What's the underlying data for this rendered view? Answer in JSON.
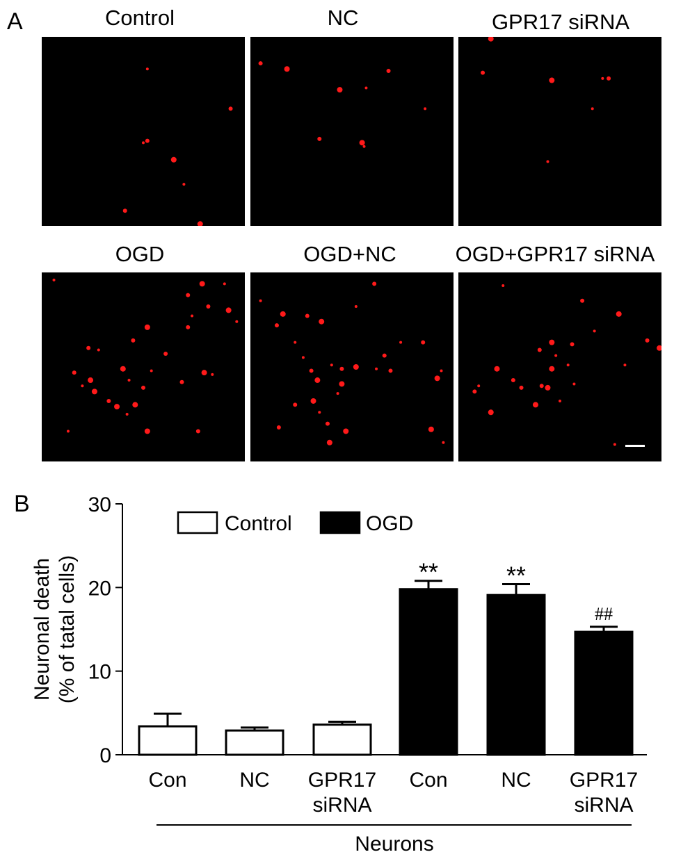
{
  "panel_a": {
    "letter": "A",
    "images": [
      {
        "title": "Control",
        "dot_color": "#ff1a1a",
        "dots": [
          [
            0.5,
            0.56
          ],
          [
            0.93,
            0.38
          ],
          [
            0.65,
            0.65
          ],
          [
            0.7,
            0.78
          ],
          [
            0.52,
            0.55
          ],
          [
            0.78,
            0.99
          ],
          [
            0.52,
            0.17
          ],
          [
            0.41,
            0.92
          ]
        ]
      },
      {
        "title": "NC",
        "dot_color": "#ff1a1a",
        "dots": [
          [
            0.57,
            0.27
          ],
          [
            0.68,
            0.18
          ],
          [
            0.44,
            0.28
          ],
          [
            0.56,
            0.58
          ],
          [
            0.34,
            0.54
          ],
          [
            0.18,
            0.17
          ],
          [
            0.86,
            0.38
          ],
          [
            0.05,
            0.14
          ],
          [
            0.55,
            0.56
          ]
        ]
      },
      {
        "title": "GPR17 siRNA",
        "dot_color": "#ff1a1a",
        "dots": [
          [
            0.44,
            0.66
          ],
          [
            0.74,
            0.22
          ],
          [
            0.46,
            0.23
          ],
          [
            0.66,
            0.38
          ],
          [
            0.12,
            0.19
          ],
          [
            0.16,
            0.01
          ],
          [
            0.71,
            0.22
          ]
        ]
      },
      {
        "title": "OGD",
        "dot_color": "#ff1a1a",
        "dots": [
          [
            0.06,
            0.04
          ],
          [
            0.23,
            0.4
          ],
          [
            0.52,
            0.29
          ],
          [
            0.74,
            0.23
          ],
          [
            0.82,
            0.18
          ],
          [
            0.92,
            0.2
          ],
          [
            0.96,
            0.26
          ],
          [
            0.72,
            0.12
          ],
          [
            0.79,
            0.06
          ],
          [
            0.54,
            0.52
          ],
          [
            0.61,
            0.43
          ],
          [
            0.4,
            0.51
          ],
          [
            0.28,
            0.41
          ],
          [
            0.45,
            0.36
          ],
          [
            0.24,
            0.57
          ],
          [
            0.2,
            0.6
          ],
          [
            0.33,
            0.68
          ],
          [
            0.37,
            0.71
          ],
          [
            0.43,
            0.57
          ],
          [
            0.5,
            0.61
          ],
          [
            0.46,
            0.7
          ],
          [
            0.42,
            0.75
          ],
          [
            0.69,
            0.58
          ],
          [
            0.8,
            0.53
          ],
          [
            0.84,
            0.54
          ],
          [
            0.16,
            0.53
          ],
          [
            0.26,
            0.63
          ],
          [
            0.13,
            0.84
          ],
          [
            0.77,
            0.84
          ],
          [
            0.52,
            0.84
          ],
          [
            0.9,
            0.06
          ],
          [
            0.72,
            0.29
          ]
        ]
      },
      {
        "title": "OGD+NC",
        "dot_color": "#ff1a1a",
        "dots": [
          [
            0.05,
            0.15
          ],
          [
            0.13,
            0.28
          ],
          [
            0.16,
            0.22
          ],
          [
            0.22,
            0.37
          ],
          [
            0.28,
            0.23
          ],
          [
            0.35,
            0.26
          ],
          [
            0.26,
            0.45
          ],
          [
            0.3,
            0.52
          ],
          [
            0.33,
            0.57
          ],
          [
            0.4,
            0.49
          ],
          [
            0.45,
            0.51
          ],
          [
            0.52,
            0.5
          ],
          [
            0.62,
            0.51
          ],
          [
            0.66,
            0.44
          ],
          [
            0.45,
            0.59
          ],
          [
            0.43,
            0.64
          ],
          [
            0.22,
            0.7
          ],
          [
            0.31,
            0.68
          ],
          [
            0.34,
            0.74
          ],
          [
            0.38,
            0.8
          ],
          [
            0.47,
            0.84
          ],
          [
            0.74,
            0.37
          ],
          [
            0.85,
            0.37
          ],
          [
            0.92,
            0.56
          ],
          [
            0.94,
            0.52
          ],
          [
            0.69,
            0.52
          ],
          [
            0.89,
            0.83
          ],
          [
            0.95,
            0.9
          ],
          [
            0.14,
            0.82
          ],
          [
            0.39,
            0.9
          ],
          [
            0.52,
            0.18
          ],
          [
            0.61,
            0.06
          ]
        ]
      },
      {
        "title": "OGD+GPR17 siRNA",
        "dot_color": "#ff1a1a",
        "dots": [
          [
            0.22,
            0.07
          ],
          [
            0.4,
            0.41
          ],
          [
            0.46,
            0.37
          ],
          [
            0.48,
            0.44
          ],
          [
            0.56,
            0.38
          ],
          [
            0.46,
            0.51
          ],
          [
            0.54,
            0.49
          ],
          [
            0.27,
            0.57
          ],
          [
            0.19,
            0.51
          ],
          [
            0.1,
            0.6
          ],
          [
            0.31,
            0.61
          ],
          [
            0.79,
            0.22
          ],
          [
            0.67,
            0.31
          ],
          [
            0.93,
            0.36
          ],
          [
            0.99,
            0.4
          ],
          [
            0.82,
            0.49
          ],
          [
            0.41,
            0.6
          ],
          [
            0.38,
            0.7
          ],
          [
            0.5,
            0.68
          ],
          [
            0.08,
            0.63
          ],
          [
            0.16,
            0.74
          ],
          [
            0.77,
            0.91
          ],
          [
            0.61,
            0.15
          ],
          [
            0.44,
            0.61
          ],
          [
            0.57,
            0.59
          ]
        ]
      }
    ],
    "scale_bar_color": "#ffffff"
  },
  "panel_b": {
    "letter": "B"
  },
  "chart_data": {
    "type": "bar",
    "ylabel_line1": "Neuronal death",
    "ylabel_line2": "(% of tatal cells)",
    "ylim": [
      0,
      30
    ],
    "yticks": [
      0,
      10,
      20,
      30
    ],
    "categories": [
      "Con",
      "NC",
      "GPR17\nsiRNA",
      "Con",
      "NC",
      "GPR17\nsiRNA"
    ],
    "category_lines": [
      [
        "Con"
      ],
      [
        "NC"
      ],
      [
        "GPR17",
        "siRNA"
      ],
      [
        "Con"
      ],
      [
        "NC"
      ],
      [
        "GPR17",
        "siRNA"
      ]
    ],
    "values": [
      3.4,
      2.9,
      3.6,
      19.8,
      19.1,
      14.7
    ],
    "errors": [
      1.5,
      0.35,
      0.35,
      1.0,
      1.3,
      0.6
    ],
    "groups": [
      "Control",
      "Control",
      "Control",
      "OGD",
      "OGD",
      "OGD"
    ],
    "annotations": [
      "",
      "",
      "",
      "**",
      "**",
      "##"
    ],
    "legend": [
      {
        "label": "Control",
        "fill": "#ffffff"
      },
      {
        "label": "OGD",
        "fill": "#000000"
      }
    ],
    "legend_position": "top-left",
    "xlabel": "Neurons",
    "grid": false
  }
}
